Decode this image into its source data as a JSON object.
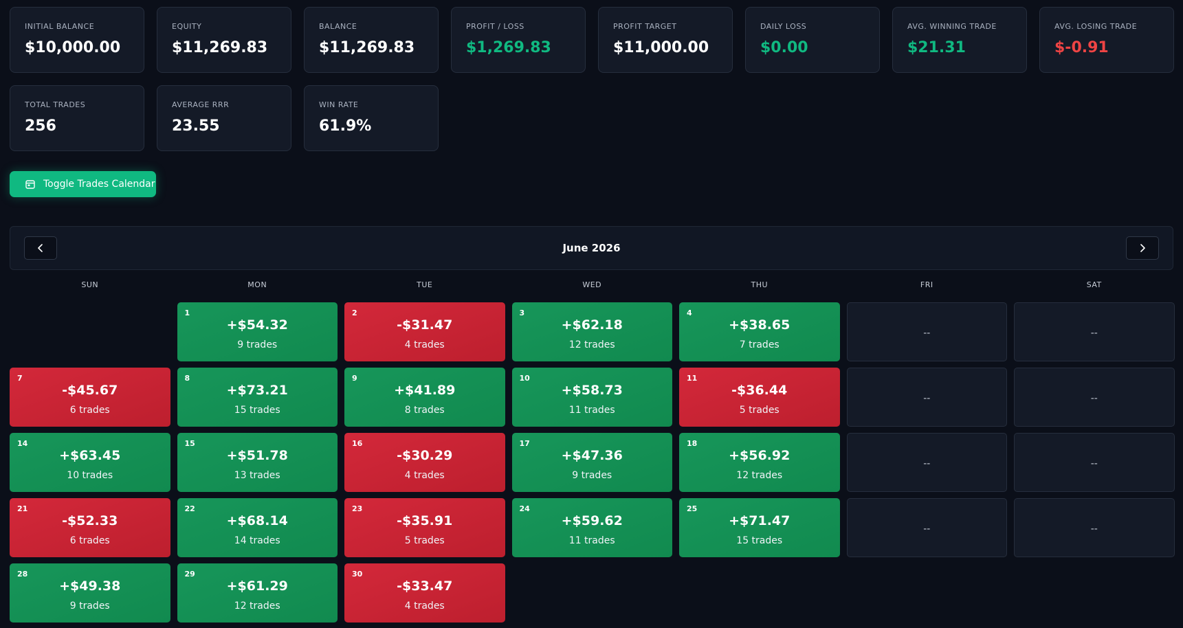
{
  "stats": {
    "row1": [
      {
        "label": "INITIAL BALANCE",
        "value": "$10,000.00",
        "tone": "neutral"
      },
      {
        "label": "EQUITY",
        "value": "$11,269.83",
        "tone": "neutral"
      },
      {
        "label": "BALANCE",
        "value": "$11,269.83",
        "tone": "neutral"
      },
      {
        "label": "PROFIT / LOSS",
        "value": "$1,269.83",
        "tone": "pos"
      },
      {
        "label": "PROFIT TARGET",
        "value": "$11,000.00",
        "tone": "neutral"
      },
      {
        "label": "DAILY LOSS",
        "value": "$0.00",
        "tone": "pos"
      },
      {
        "label": "AVG. WINNING TRADE",
        "value": "$21.31",
        "tone": "pos"
      },
      {
        "label": "AVG. LOSING TRADE",
        "value": "$-0.91",
        "tone": "neg"
      }
    ],
    "row2": [
      {
        "label": "TOTAL TRADES",
        "value": "256",
        "tone": "neutral"
      },
      {
        "label": "AVERAGE RRR",
        "value": "23.55",
        "tone": "neutral"
      },
      {
        "label": "WIN RATE",
        "value": "61.9%",
        "tone": "neutral"
      }
    ]
  },
  "toggle_button": {
    "label": "Toggle Trades Calendar",
    "icon": "calendar-icon"
  },
  "calendar": {
    "month_title": "June 2026",
    "prev_icon": "chevron-left-icon",
    "next_icon": "chevron-right-icon",
    "weekdays": [
      "SUN",
      "MON",
      "TUE",
      "WED",
      "THU",
      "FRI",
      "SAT"
    ],
    "empty_placeholder": "--",
    "colors": {
      "profit": "#17965a",
      "loss": "#d3283a",
      "accent": "#10b981"
    },
    "cells": [
      {
        "type": "blank"
      },
      {
        "type": "profit",
        "day": "1",
        "pnl": "+$54.32",
        "trades": "9 trades"
      },
      {
        "type": "loss",
        "day": "2",
        "pnl": "-$31.47",
        "trades": "4 trades"
      },
      {
        "type": "profit",
        "day": "3",
        "pnl": "+$62.18",
        "trades": "12 trades"
      },
      {
        "type": "profit",
        "day": "4",
        "pnl": "+$38.65",
        "trades": "7 trades"
      },
      {
        "type": "empty"
      },
      {
        "type": "empty"
      },
      {
        "type": "loss",
        "day": "7",
        "pnl": "-$45.67",
        "trades": "6 trades"
      },
      {
        "type": "profit",
        "day": "8",
        "pnl": "+$73.21",
        "trades": "15 trades"
      },
      {
        "type": "profit",
        "day": "9",
        "pnl": "+$41.89",
        "trades": "8 trades"
      },
      {
        "type": "profit",
        "day": "10",
        "pnl": "+$58.73",
        "trades": "11 trades"
      },
      {
        "type": "loss",
        "day": "11",
        "pnl": "-$36.44",
        "trades": "5 trades"
      },
      {
        "type": "empty"
      },
      {
        "type": "empty"
      },
      {
        "type": "profit",
        "day": "14",
        "pnl": "+$63.45",
        "trades": "10 trades"
      },
      {
        "type": "profit",
        "day": "15",
        "pnl": "+$51.78",
        "trades": "13 trades"
      },
      {
        "type": "loss",
        "day": "16",
        "pnl": "-$30.29",
        "trades": "4 trades"
      },
      {
        "type": "profit",
        "day": "17",
        "pnl": "+$47.36",
        "trades": "9 trades"
      },
      {
        "type": "profit",
        "day": "18",
        "pnl": "+$56.92",
        "trades": "12 trades"
      },
      {
        "type": "empty"
      },
      {
        "type": "empty"
      },
      {
        "type": "loss",
        "day": "21",
        "pnl": "-$52.33",
        "trades": "6 trades"
      },
      {
        "type": "profit",
        "day": "22",
        "pnl": "+$68.14",
        "trades": "14 trades"
      },
      {
        "type": "loss",
        "day": "23",
        "pnl": "-$35.91",
        "trades": "5 trades"
      },
      {
        "type": "profit",
        "day": "24",
        "pnl": "+$59.62",
        "trades": "11 trades"
      },
      {
        "type": "profit",
        "day": "25",
        "pnl": "+$71.47",
        "trades": "15 trades"
      },
      {
        "type": "empty"
      },
      {
        "type": "empty"
      },
      {
        "type": "profit",
        "day": "28",
        "pnl": "+$49.38",
        "trades": "9 trades"
      },
      {
        "type": "profit",
        "day": "29",
        "pnl": "+$61.29",
        "trades": "12 trades"
      },
      {
        "type": "loss",
        "day": "30",
        "pnl": "-$33.47",
        "trades": "4 trades"
      }
    ]
  }
}
